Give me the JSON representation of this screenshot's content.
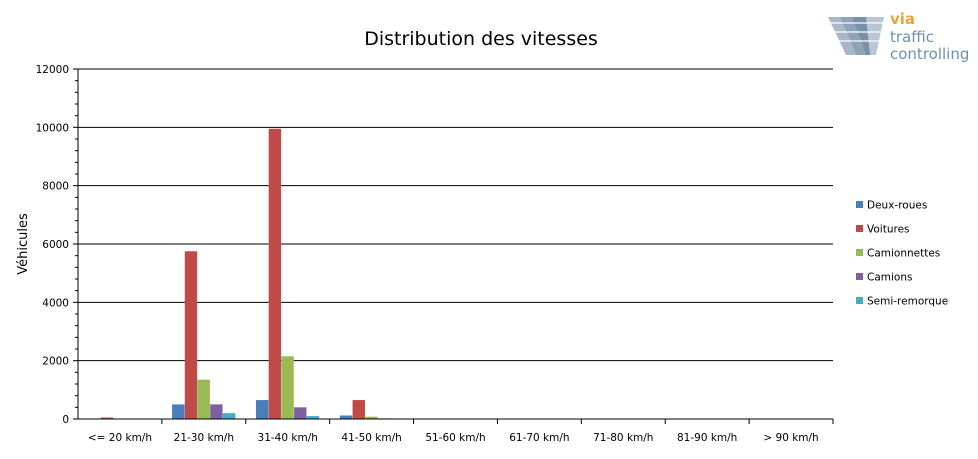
{
  "chart_data": {
    "type": "bar",
    "title": "Distribution des vitesses",
    "ylabel": "Véhicules",
    "xlabel": "",
    "ylim": [
      0,
      12000
    ],
    "ytick_step": 2000,
    "yticks": [
      "0",
      "2000",
      "4000",
      "6000",
      "8000",
      "10000",
      "12000"
    ],
    "grid": true,
    "legend_position": "right",
    "categories": [
      "<= 20 km/h",
      "21-30 km/h",
      "31-40 km/h",
      "41-50 km/h",
      "51-60 km/h",
      "61-70 km/h",
      "71-80 km/h",
      "81-90 km/h",
      "> 90 km/h"
    ],
    "series": [
      {
        "name": "Deux-roues",
        "color": "#4a7ebb",
        "values": [
          10,
          500,
          650,
          120,
          0,
          0,
          0,
          0,
          0
        ]
      },
      {
        "name": "Voitures",
        "color": "#be4b48",
        "values": [
          50,
          5750,
          9950,
          650,
          0,
          0,
          0,
          0,
          0
        ]
      },
      {
        "name": "Camionnettes",
        "color": "#98b954",
        "values": [
          10,
          1350,
          2150,
          80,
          0,
          0,
          0,
          0,
          0
        ]
      },
      {
        "name": "Camions",
        "color": "#7d60a0",
        "values": [
          5,
          500,
          400,
          20,
          0,
          0,
          0,
          0,
          0
        ]
      },
      {
        "name": "Semi-remorque",
        "color": "#46aac5",
        "values": [
          0,
          200,
          100,
          10,
          0,
          0,
          0,
          0,
          0
        ]
      }
    ]
  },
  "logo": {
    "line1": "via",
    "line2": "traffic",
    "line3": "controlling",
    "mark": "via-traffic-controlling-logo-icon"
  }
}
